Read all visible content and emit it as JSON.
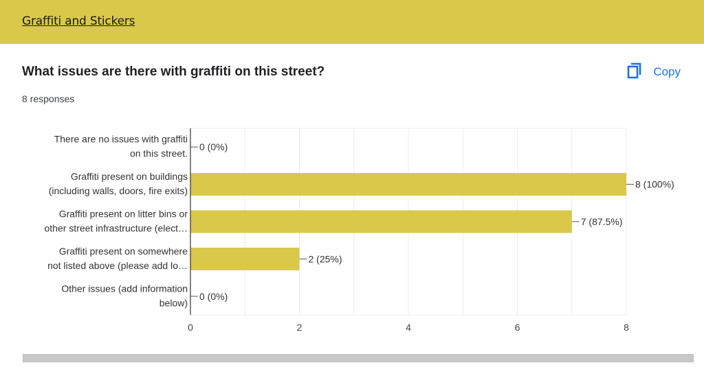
{
  "section": {
    "title": "Graffiti and Stickers"
  },
  "question": {
    "title": "What issues are there with graffiti on this street?",
    "responses": "8 responses",
    "copy_label": "Copy"
  },
  "colors": {
    "header": "#d9c84a",
    "bar": "#d9c84a",
    "accent": "#1a73e8"
  },
  "chart_data": {
    "type": "bar",
    "orientation": "horizontal",
    "categories": [
      [
        "There are no issues with graffiti",
        "on this street."
      ],
      [
        "Graffiti present on buildings",
        "(including walls, doors, fire exits)"
      ],
      [
        "Graffiti present on litter bins or",
        "other street infrastructure (elect…"
      ],
      [
        "Graffiti present on somewhere",
        "not listed above (please add lo…"
      ],
      [
        "Other issues (add information",
        "below)"
      ]
    ],
    "values": [
      0,
      8,
      7,
      2,
      0
    ],
    "data_labels": [
      "0 (0%)",
      "8 (100%)",
      "7 (87.5%)",
      "2 (25%)",
      "0 (0%)"
    ],
    "xlim": [
      0,
      8
    ],
    "xticks": [
      0,
      2,
      4,
      6,
      8
    ],
    "grid": true
  }
}
